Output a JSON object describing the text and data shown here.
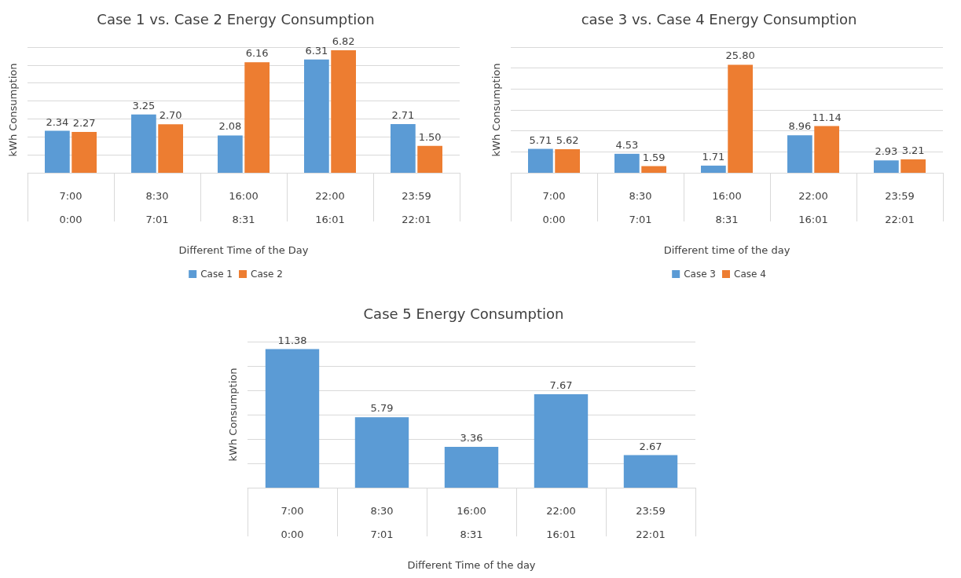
{
  "chart_data": [
    {
      "type": "bar",
      "title": "Case 1 vs. Case 2 Energy Consumption",
      "xlabel": "Different Time of the Day",
      "ylabel": "kWh Consumption",
      "categories": [
        "7:00\n0:00",
        "8:30\n7:01",
        "16:00\n8:31",
        "22:00\n16:01",
        "23:59\n22:01"
      ],
      "series": [
        {
          "name": "Case 1",
          "color": "#5b9bd5",
          "values": [
            2.34,
            3.25,
            2.08,
            6.31,
            2.71
          ],
          "value_labels": [
            "2.34",
            "3.25",
            "2.08",
            "6.31",
            "2.71"
          ]
        },
        {
          "name": "Case 2",
          "color": "#ed7d31",
          "values": [
            2.27,
            2.7,
            6.16,
            6.82,
            1.5
          ],
          "value_labels": [
            "2.27",
            "2.70",
            "6.16",
            "6.82",
            "1.50"
          ]
        }
      ],
      "ylim": [
        0,
        7
      ],
      "yticks": [
        {
          "value": 0,
          "label": null
        },
        {
          "value": 1,
          "label": null
        },
        {
          "value": 2,
          "label": null
        },
        {
          "value": 3,
          "label": null
        },
        {
          "value": 4,
          "label": null
        },
        {
          "value": 5,
          "label": null
        },
        {
          "value": 6,
          "label": null
        },
        {
          "value": 7,
          "label": null
        }
      ],
      "grid": "y",
      "legend": "bottom"
    },
    {
      "type": "bar",
      "title": "case 3 vs. Case 4 Energy Consumption",
      "xlabel": "Different time of the day",
      "ylabel": "kWh Consumption",
      "categories": [
        "7:00\n0:00",
        "8:30\n7:01",
        "16:00\n8:31",
        "22:00\n16:01",
        "23:59\n22:01"
      ],
      "series": [
        {
          "name": "Case 3",
          "color": "#5b9bd5",
          "values": [
            5.71,
            4.53,
            1.71,
            8.96,
            2.93
          ],
          "value_labels": [
            "5.71",
            "4.53",
            "1.71",
            "8.96",
            "2.93"
          ]
        },
        {
          "name": "Case 4",
          "color": "#ed7d31",
          "values": [
            5.62,
            1.59,
            25.8,
            11.14,
            3.21
          ],
          "value_labels": [
            "5.62",
            "1.59",
            "25.80",
            "11.14",
            "3.21"
          ]
        }
      ],
      "ylim": [
        0,
        30
      ],
      "yticks": [
        {
          "value": 0,
          "label": null
        },
        {
          "value": 5,
          "label": null
        },
        {
          "value": 10,
          "label": null
        },
        {
          "value": 15,
          "label": null
        },
        {
          "value": 20,
          "label": null
        },
        {
          "value": 25,
          "label": null
        },
        {
          "value": 30,
          "label": null
        }
      ],
      "grid": "y",
      "legend": "bottom"
    },
    {
      "type": "bar",
      "title": "Case 5 Energy Consumption",
      "xlabel": "Different Time of the day",
      "ylabel": "kWh Consumption",
      "categories": [
        "7:00\n0:00",
        "8:30\n7:01",
        "16:00\n8:31",
        "22:00\n16:01",
        "23:59\n22:01"
      ],
      "series": [
        {
          "color": "#5b9bd5",
          "values": [
            11.38,
            5.79,
            3.36,
            7.67,
            2.67
          ]
        }
      ],
      "ylim": [
        0,
        12
      ],
      "yticks": [
        {
          "value": 0,
          "label": null
        },
        {
          "value": 2,
          "label": null
        },
        {
          "value": 4,
          "label": null
        },
        {
          "value": 6,
          "label": null
        },
        {
          "value": 8,
          "label": null
        },
        {
          "value": 10,
          "label": null
        },
        {
          "value": 12,
          "label": null
        }
      ],
      "grid": "y",
      "data_labels": true
    }
  ]
}
